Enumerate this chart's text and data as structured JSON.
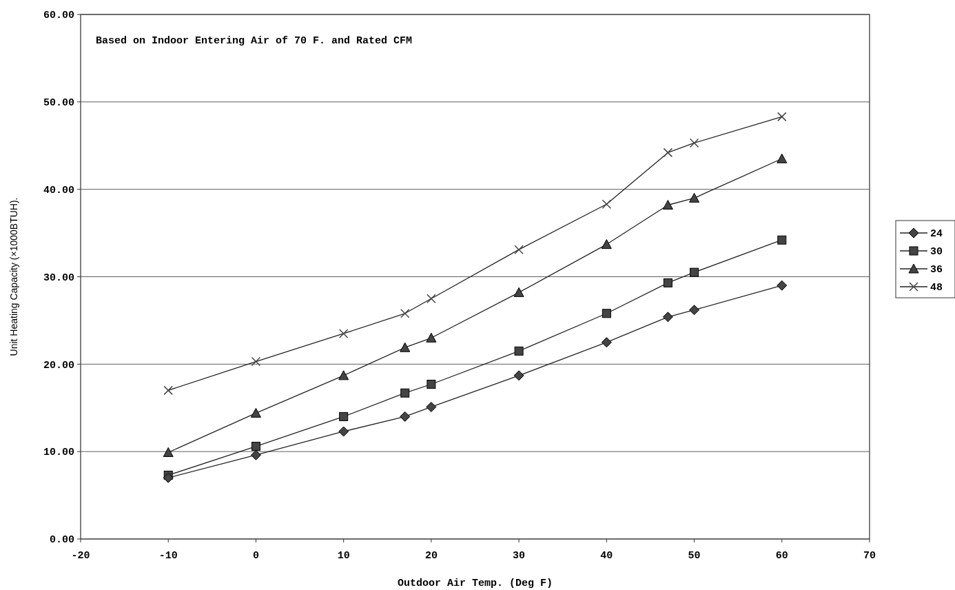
{
  "chart_data": {
    "type": "line",
    "xlabel": "Outdoor Air Temp. (Deg F)",
    "ylabel": "Unit Heating Capacity (×1000BTUH).",
    "annotations": [
      "Based on Indoor Entering Air of 70 F. and Rated CFM"
    ],
    "x": [
      -10,
      0,
      10,
      17,
      20,
      30,
      40,
      47,
      50,
      60
    ],
    "xlim": [
      -20,
      70
    ],
    "xticks": [
      -20,
      -10,
      0,
      10,
      20,
      30,
      40,
      50,
      60,
      70
    ],
    "ylim": [
      0,
      60
    ],
    "yticks": [
      {
        "value": 0,
        "label": "0.00"
      },
      {
        "value": 10,
        "label": "10.00"
      },
      {
        "value": 20,
        "label": "20.00"
      },
      {
        "value": 30,
        "label": "30.00"
      },
      {
        "value": 40,
        "label": "40.00"
      },
      {
        "value": 50,
        "label": "50.00"
      },
      {
        "value": 60,
        "label": "60.00"
      }
    ],
    "grid": "y",
    "legend": "right",
    "line_style": "solid",
    "series": [
      {
        "name": "24",
        "color": "#444444",
        "marker": "diamond",
        "values": [
          7.0,
          9.6,
          12.3,
          14.0,
          15.1,
          18.7,
          22.5,
          25.4,
          26.2,
          29.0
        ]
      },
      {
        "name": "30",
        "color": "#444444",
        "marker": "square",
        "values": [
          7.3,
          10.6,
          14.0,
          16.7,
          17.7,
          21.5,
          25.8,
          29.3,
          30.5,
          34.2
        ]
      },
      {
        "name": "36",
        "color": "#444444",
        "marker": "triangle",
        "values": [
          9.9,
          14.4,
          18.7,
          21.9,
          23.0,
          28.2,
          33.7,
          38.2,
          39.0,
          43.5
        ]
      },
      {
        "name": "48",
        "color": "#444444",
        "marker": "cross",
        "values": [
          17.0,
          20.3,
          23.5,
          25.8,
          27.5,
          33.1,
          38.3,
          44.2,
          45.3,
          48.3
        ]
      }
    ]
  }
}
